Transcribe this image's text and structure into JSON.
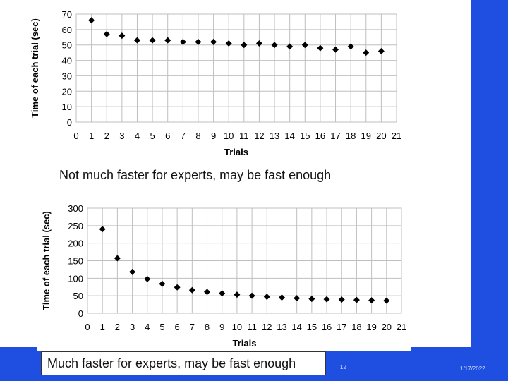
{
  "chart_data": [
    {
      "type": "scatter",
      "title": "",
      "xlabel": "Trials",
      "ylabel": "Time of each trial (sec)",
      "xlim": [
        0,
        21
      ],
      "ylim": [
        0,
        70
      ],
      "xticks": [
        "0",
        "1",
        "2",
        "3",
        "4",
        "5",
        "6",
        "7",
        "8",
        "9",
        "10",
        "11",
        "12",
        "13",
        "14",
        "15",
        "16",
        "17",
        "18",
        "19",
        "20",
        "21"
      ],
      "yticks": [
        "0",
        "10",
        "20",
        "30",
        "40",
        "50",
        "60",
        "70"
      ],
      "grid": true,
      "x": [
        1,
        2,
        3,
        4,
        5,
        6,
        7,
        8,
        9,
        10,
        11,
        12,
        13,
        14,
        15,
        16,
        17,
        18,
        19,
        20
      ],
      "y": [
        66,
        57,
        56,
        53,
        53,
        53,
        52,
        52,
        52,
        51,
        50,
        51,
        50,
        49,
        50,
        48,
        47,
        49,
        45,
        46
      ]
    },
    {
      "type": "scatter",
      "title": "",
      "xlabel": "Trials",
      "ylabel": "Time of each trial (sec)",
      "xlim": [
        0,
        21
      ],
      "ylim": [
        0,
        300
      ],
      "xticks": [
        "0",
        "1",
        "2",
        "3",
        "4",
        "5",
        "6",
        "7",
        "8",
        "9",
        "10",
        "11",
        "12",
        "13",
        "14",
        "15",
        "16",
        "17",
        "18",
        "19",
        "20",
        "21"
      ],
      "yticks": [
        "0",
        "50",
        "100",
        "150",
        "200",
        "250",
        "300"
      ],
      "grid": true,
      "x": [
        1,
        2,
        3,
        4,
        5,
        6,
        7,
        8,
        9,
        10,
        11,
        12,
        13,
        14,
        15,
        16,
        17,
        18,
        19,
        20
      ],
      "y": [
        240,
        157,
        118,
        98,
        84,
        74,
        66,
        61,
        57,
        53,
        50,
        47,
        45,
        43,
        41,
        40,
        39,
        38,
        37,
        36
      ]
    }
  ],
  "captions": {
    "top": "Not much faster for experts, may be fast enough",
    "bottom": "Much faster for experts, may be fast enough"
  },
  "footer": {
    "page_number": "12",
    "date": "1/17/2022"
  },
  "colors": {
    "accent": "#1f4fe0",
    "marker": "#000000",
    "grid": "#bfbfbf"
  }
}
